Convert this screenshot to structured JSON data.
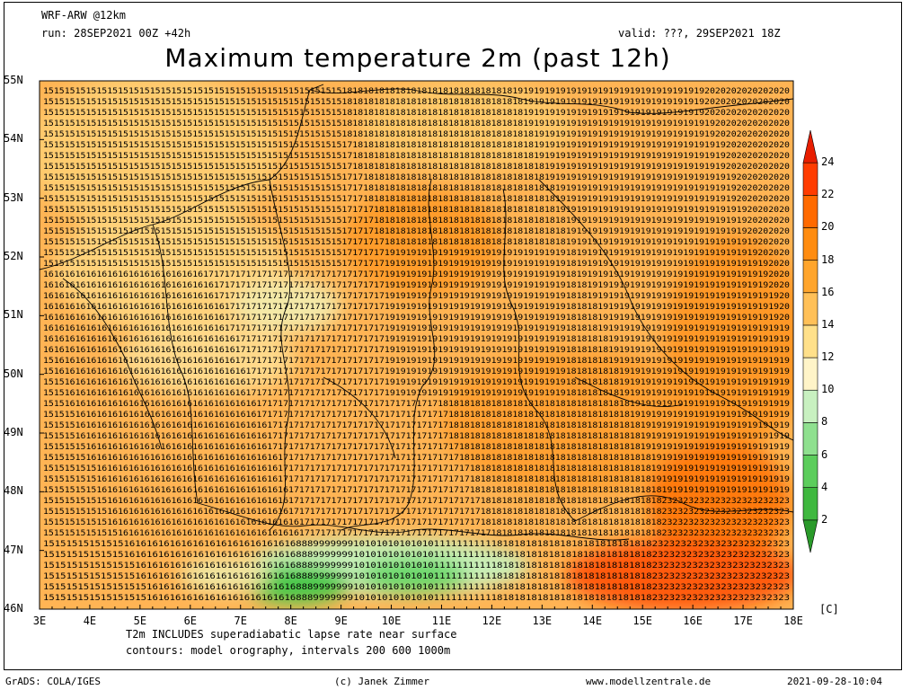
{
  "header": {
    "model": "WRF-ARW @12km",
    "run": "run: 28SEP2021 00Z +42h",
    "valid": "valid: ???, 29SEP2021 18Z",
    "title": "Maximum temperature 2m (past 12h)"
  },
  "map": {
    "lat_labels": [
      "55N",
      "54N",
      "53N",
      "52N",
      "51N",
      "50N",
      "49N",
      "48N",
      "47N",
      "46N"
    ],
    "lon_labels": [
      "3E",
      "4E",
      "5E",
      "6E",
      "7E",
      "8E",
      "9E",
      "10E",
      "11E",
      "12E",
      "13E",
      "14E",
      "15E",
      "16E",
      "17E",
      "18E"
    ],
    "lat_range": [
      46,
      55
    ],
    "lon_range": [
      3,
      18
    ],
    "variable": "2m maximum temperature",
    "grid_values_sample": {
      "north_sea_coast": 15,
      "central_germany": 17,
      "eastern_germany_poland": 19,
      "alps": 8,
      "hungary_croatia": 23
    }
  },
  "legend": {
    "ticks": [
      "24",
      "22",
      "20",
      "18",
      "16",
      "14",
      "12",
      "10",
      "8",
      "6",
      "4",
      "2"
    ],
    "unit": "[C]",
    "colors": [
      "#2a9a2a",
      "#3fb83f",
      "#5ccd5c",
      "#8fe08f",
      "#c8f0c0",
      "#fff4c8",
      "#ffe08a",
      "#ffc058",
      "#ffa52c",
      "#ff8c10",
      "#ff6a00",
      "#ff3c00",
      "#e81e00"
    ]
  },
  "notes": {
    "line1": "T2m INCLUDES superadiabatic lapse rate near surface",
    "line2": "contours: model orography, intervals 200 600 1000m"
  },
  "footer": {
    "left": "GrADS: COLA/IGES",
    "center": "(c) Janek Zimmer",
    "right_site": "www.modellzentrale.de",
    "timestamp": "2021-09-28-10:04"
  }
}
